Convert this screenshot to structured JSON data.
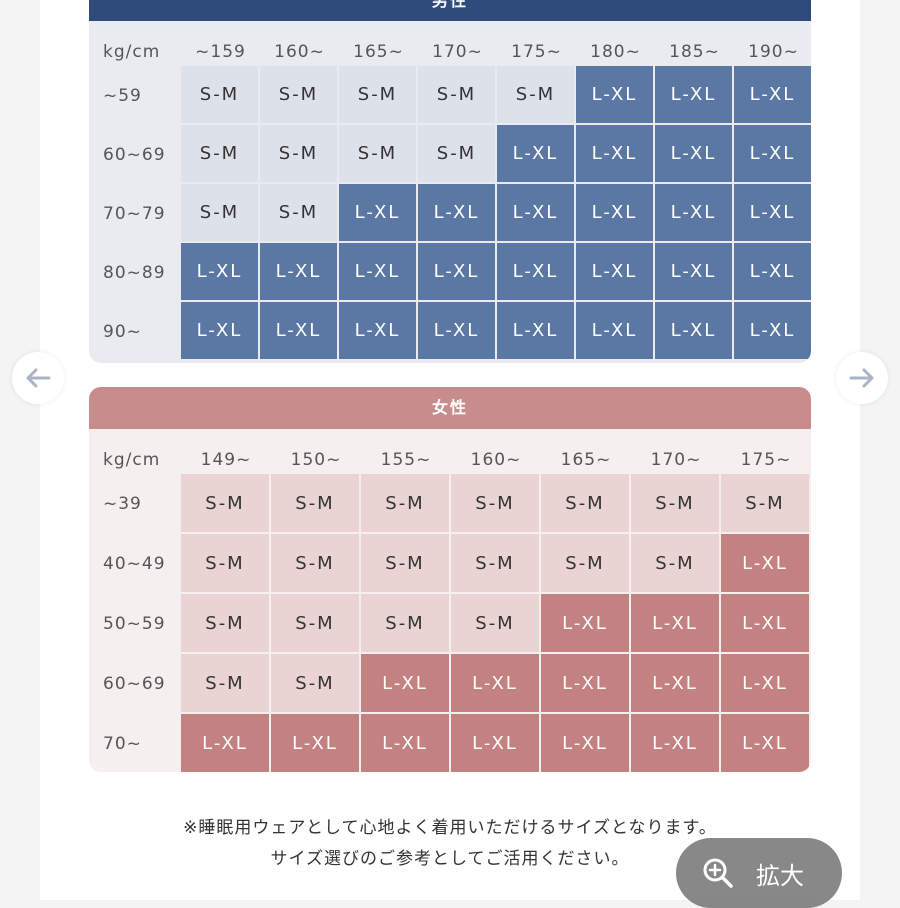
{
  "men": {
    "title": "男性",
    "corner": "kg/cm",
    "columns": [
      "~159",
      "160~",
      "165~",
      "170~",
      "175~",
      "180~",
      "185~",
      "190~"
    ],
    "rows": [
      {
        "label": "~59",
        "cells": [
          "S-M",
          "S-M",
          "S-M",
          "S-M",
          "S-M",
          "L-XL",
          "L-XL",
          "L-XL"
        ]
      },
      {
        "label": "60~69",
        "cells": [
          "S-M",
          "S-M",
          "S-M",
          "S-M",
          "L-XL",
          "L-XL",
          "L-XL",
          "L-XL"
        ]
      },
      {
        "label": "70~79",
        "cells": [
          "S-M",
          "S-M",
          "L-XL",
          "L-XL",
          "L-XL",
          "L-XL",
          "L-XL",
          "L-XL"
        ]
      },
      {
        "label": "80~89",
        "cells": [
          "L-XL",
          "L-XL",
          "L-XL",
          "L-XL",
          "L-XL",
          "L-XL",
          "L-XL",
          "L-XL"
        ]
      },
      {
        "label": "90~",
        "cells": [
          "L-XL",
          "L-XL",
          "L-XL",
          "L-XL",
          "L-XL",
          "L-XL",
          "L-XL",
          "L-XL"
        ]
      }
    ]
  },
  "women": {
    "title": "女性",
    "corner": "kg/cm",
    "columns": [
      "149~",
      "150~",
      "155~",
      "160~",
      "165~",
      "170~",
      "175~"
    ],
    "rows": [
      {
        "label": "~39",
        "cells": [
          "S-M",
          "S-M",
          "S-M",
          "S-M",
          "S-M",
          "S-M",
          "S-M"
        ]
      },
      {
        "label": "40~49",
        "cells": [
          "S-M",
          "S-M",
          "S-M",
          "S-M",
          "S-M",
          "S-M",
          "L-XL"
        ]
      },
      {
        "label": "50~59",
        "cells": [
          "S-M",
          "S-M",
          "S-M",
          "S-M",
          "L-XL",
          "L-XL",
          "L-XL"
        ]
      },
      {
        "label": "60~69",
        "cells": [
          "S-M",
          "S-M",
          "L-XL",
          "L-XL",
          "L-XL",
          "L-XL",
          "L-XL"
        ]
      },
      {
        "label": "70~",
        "cells": [
          "L-XL",
          "L-XL",
          "L-XL",
          "L-XL",
          "L-XL",
          "L-XL",
          "L-XL"
        ]
      }
    ]
  },
  "colors": {
    "men_small_bg": "#dde1ea",
    "men_small_text": "#333333",
    "men_large_bg": "#5b77a3",
    "men_large_text": "#ffffff",
    "women_small_bg": "#e9d3d3",
    "women_small_text": "#333333",
    "women_large_bg": "#c48181",
    "women_large_text": "#ffffff"
  },
  "nav": {
    "prev_icon": "arrow-left-icon",
    "next_icon": "arrow-right-icon"
  },
  "note": {
    "line1": "※睡眠用ウェアとして心地よく着用いただけるサイズとなります。",
    "line2": "サイズ選びのご参考としてご活用ください。"
  },
  "zoom": {
    "icon": "zoom-in-icon",
    "label": "拡大"
  }
}
